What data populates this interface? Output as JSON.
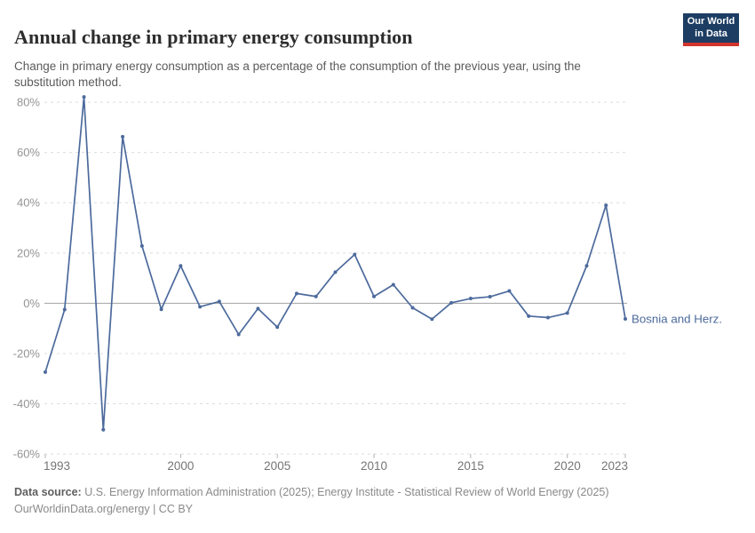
{
  "header": {
    "title": "Annual change in primary energy consumption",
    "subtitle": "Change in primary energy consumption as a percentage of the consumption of the previous year, using the substitution method."
  },
  "logo": {
    "line1": "Our World",
    "line2": "in Data",
    "bg_color": "#1d3d63",
    "accent_color": "#d1342c"
  },
  "chart_data": {
    "type": "line",
    "title": "Annual change in primary energy consumption",
    "x": [
      1993,
      1994,
      1995,
      1996,
      1997,
      1998,
      1999,
      2000,
      2001,
      2002,
      2003,
      2004,
      2005,
      2006,
      2007,
      2008,
      2009,
      2010,
      2011,
      2012,
      2013,
      2014,
      2015,
      2016,
      2017,
      2018,
      2019,
      2020,
      2021,
      2022,
      2023
    ],
    "series": [
      {
        "name": "Bosnia and Herz.",
        "color": "#4c6a9c",
        "values": [
          -27.4,
          -2.5,
          82.1,
          -50.3,
          66.3,
          22.8,
          -2.4,
          14.9,
          -1.4,
          0.7,
          -12.4,
          -2.1,
          -9.5,
          3.9,
          2.7,
          12.4,
          19.4,
          2.7,
          7.4,
          -1.8,
          -6.3,
          0.2,
          1.9,
          2.6,
          4.9,
          -5.1,
          -5.7,
          -3.9,
          14.9,
          39,
          -6.2
        ]
      }
    ],
    "end_label": "Bosnia and Herz.",
    "x_ticks": [
      1993,
      2000,
      2005,
      2010,
      2015,
      2020,
      2023
    ],
    "y_ticks": [
      80,
      60,
      40,
      20,
      0,
      -20,
      -40,
      -60
    ],
    "y_unit": "%",
    "xlim": [
      1993,
      2023
    ],
    "ylim": [
      -60,
      86
    ],
    "grid": "horizontal-dashed",
    "zero_axis": true,
    "legend_position": "end-of-line"
  },
  "footer": {
    "source_label": "Data source:",
    "source_text": " U.S. Energy Information Administration (2025); Energy Institute - Statistical Review of World Energy (2025)",
    "license_line": "OurWorldinData.org/energy | CC BY"
  },
  "colors": {
    "line": "#4c6a9c",
    "grid": "#dcdcdc",
    "zero_line": "#a3a3a3",
    "tick": "#b0b0b0",
    "y_label": "#949494",
    "x_label": "#757575",
    "title": "#2d2d2d",
    "subtitle": "#5b5b5b",
    "footer": "#8a8a8a"
  }
}
